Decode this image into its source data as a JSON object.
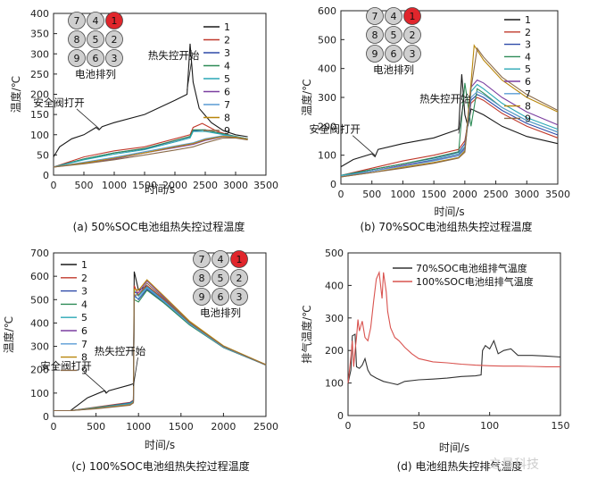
{
  "legend_labels": [
    "1",
    "2",
    "3",
    "4",
    "5",
    "6",
    "7",
    "8",
    "9"
  ],
  "series_colors": [
    "#1a1a1a",
    "#c0392b",
    "#2e4aa8",
    "#2e8b57",
    "#2aa7b5",
    "#7b3fa0",
    "#5a9bd4",
    "#b8860b",
    "#8b6b4a"
  ],
  "battery_grid": {
    "cells": [
      "7",
      "4",
      "1",
      "8",
      "5",
      "2",
      "9",
      "6",
      "3"
    ],
    "hot_cell": "1",
    "hot_color": "#e0262c",
    "cell_color": "#cfcfcf",
    "label": "电池排列"
  },
  "watermark": "之量科技",
  "chart_data": [
    {
      "type": "line",
      "caption": "(a) 50%SOC电池组热失控过程温度",
      "xlabel": "时间/s",
      "ylabel": "温度/℃",
      "xlim": [
        0,
        3500
      ],
      "ylim": [
        0,
        400
      ],
      "xticks": [
        0,
        500,
        1000,
        1500,
        2000,
        2500,
        3000,
        3500
      ],
      "yticks": [
        0,
        50,
        100,
        150,
        200,
        250,
        300,
        350,
        400
      ],
      "annotations": [
        {
          "text": "安全阀打开",
          "at": [
            750,
            115
          ]
        },
        {
          "text": "热失控开始",
          "at": [
            2200,
            210
          ]
        }
      ],
      "series": [
        {
          "name": "1",
          "x": [
            0,
            100,
            300,
            500,
            700,
            750,
            800,
            1000,
            1500,
            2000,
            2200,
            2250,
            2300,
            2400,
            2600,
            2800,
            3000,
            3200
          ],
          "y": [
            45,
            70,
            90,
            100,
            118,
            112,
            120,
            130,
            150,
            185,
            200,
            325,
            230,
            165,
            130,
            110,
            100,
            95
          ]
        },
        {
          "name": "2",
          "x": [
            0,
            500,
            1000,
            1500,
            2000,
            2250,
            2300,
            2450,
            2700,
            3000,
            3200
          ],
          "y": [
            20,
            45,
            60,
            70,
            90,
            100,
            118,
            128,
            108,
            95,
            90
          ]
        },
        {
          "name": "3",
          "x": [
            0,
            500,
            1000,
            1500,
            2000,
            2250,
            2300,
            2500,
            2700,
            3000,
            3200
          ],
          "y": [
            20,
            40,
            55,
            65,
            85,
            95,
            110,
            112,
            105,
            95,
            90
          ]
        },
        {
          "name": "4",
          "x": [
            0,
            500,
            1000,
            1500,
            2000,
            2250,
            2300,
            2500,
            2700,
            3000,
            3200
          ],
          "y": [
            20,
            40,
            55,
            66,
            86,
            96,
            112,
            112,
            105,
            96,
            90
          ]
        },
        {
          "name": "5",
          "x": [
            0,
            500,
            1000,
            1500,
            2000,
            2250,
            2300,
            2500,
            2700,
            3000,
            3200
          ],
          "y": [
            20,
            38,
            52,
            63,
            82,
            92,
            108,
            108,
            103,
            95,
            90
          ]
        },
        {
          "name": "6",
          "x": [
            0,
            500,
            1000,
            1500,
            2000,
            2300,
            2500,
            2800,
            3000,
            3200
          ],
          "y": [
            20,
            30,
            40,
            55,
            68,
            76,
            86,
            95,
            93,
            88
          ]
        },
        {
          "name": "7",
          "x": [
            0,
            500,
            1000,
            1500,
            2000,
            2300,
            2500,
            2800,
            3000,
            3200
          ],
          "y": [
            20,
            32,
            44,
            58,
            72,
            80,
            90,
            98,
            95,
            90
          ]
        },
        {
          "name": "8",
          "x": [
            0,
            500,
            1000,
            1500,
            2000,
            2300,
            2500,
            2800,
            3000,
            3200
          ],
          "y": [
            20,
            30,
            42,
            55,
            70,
            78,
            88,
            96,
            94,
            89
          ]
        },
        {
          "name": "9",
          "x": [
            0,
            500,
            1000,
            1500,
            2000,
            2300,
            2500,
            2800,
            3000,
            3200
          ],
          "y": [
            20,
            28,
            38,
            50,
            62,
            70,
            80,
            92,
            92,
            87
          ]
        }
      ]
    },
    {
      "type": "line",
      "caption": "(b) 70%SOC电池组热失控过程温度",
      "xlabel": "时间/s",
      "ylabel": "温度/℃",
      "xlim": [
        0,
        3500
      ],
      "ylim": [
        0,
        600
      ],
      "xticks": [
        0,
        500,
        1000,
        1500,
        2000,
        2500,
        3000,
        3500
      ],
      "yticks": [
        0,
        100,
        200,
        300,
        400,
        500,
        600
      ],
      "annotations": [
        {
          "text": "安全阀打开",
          "at": [
            550,
            100
          ]
        },
        {
          "text": "热失控开始",
          "at": [
            1900,
            175
          ]
        }
      ],
      "series": [
        {
          "name": "1",
          "x": [
            0,
            200,
            500,
            550,
            600,
            1000,
            1500,
            1900,
            1950,
            2000,
            2050,
            2100,
            2300,
            2600,
            3000,
            3500
          ],
          "y": [
            60,
            85,
            105,
            95,
            120,
            140,
            160,
            190,
            380,
            240,
            200,
            260,
            240,
            200,
            165,
            140
          ]
        },
        {
          "name": "2",
          "x": [
            0,
            500,
            1000,
            1500,
            1900,
            2000,
            2100,
            2200,
            2300,
            2600,
            3000,
            3500
          ],
          "y": [
            30,
            55,
            80,
            100,
            120,
            150,
            280,
            300,
            290,
            245,
            200,
            160
          ]
        },
        {
          "name": "3",
          "x": [
            0,
            500,
            1000,
            1500,
            1900,
            2000,
            2100,
            2200,
            2300,
            2600,
            3000,
            3500
          ],
          "y": [
            30,
            50,
            70,
            90,
            110,
            140,
            290,
            310,
            300,
            255,
            210,
            170
          ]
        },
        {
          "name": "4",
          "x": [
            0,
            500,
            1000,
            1500,
            1900,
            2000,
            2100,
            2200,
            2300,
            2600,
            3000,
            3500
          ],
          "y": [
            30,
            50,
            70,
            92,
            112,
            350,
            200,
            330,
            315,
            265,
            220,
            180
          ]
        },
        {
          "name": "5",
          "x": [
            0,
            500,
            1000,
            1500,
            1900,
            2000,
            2100,
            2200,
            2300,
            2600,
            3000,
            3500
          ],
          "y": [
            30,
            45,
            65,
            85,
            105,
            130,
            320,
            345,
            330,
            280,
            230,
            190
          ]
        },
        {
          "name": "6",
          "x": [
            0,
            500,
            1000,
            1500,
            1900,
            2000,
            2100,
            2200,
            2300,
            2600,
            3000,
            3500
          ],
          "y": [
            25,
            45,
            65,
            82,
            100,
            125,
            335,
            360,
            350,
            300,
            250,
            205
          ]
        },
        {
          "name": "7",
          "x": [
            0,
            500,
            1000,
            1500,
            1900,
            2000,
            2100,
            2200,
            2300,
            2600,
            3000,
            3500
          ],
          "y": [
            25,
            45,
            62,
            80,
            98,
            120,
            300,
            320,
            310,
            265,
            220,
            180
          ]
        },
        {
          "name": "8",
          "x": [
            0,
            500,
            1000,
            1500,
            1900,
            2000,
            2100,
            2150,
            2300,
            2600,
            3000,
            3500
          ],
          "y": [
            25,
            40,
            58,
            75,
            92,
            115,
            350,
            480,
            430,
            360,
            300,
            250
          ]
        },
        {
          "name": "9",
          "x": [
            0,
            500,
            1000,
            1500,
            1900,
            2000,
            2100,
            2200,
            2300,
            2600,
            3000,
            3500
          ],
          "y": [
            25,
            40,
            55,
            72,
            90,
            110,
            330,
            470,
            440,
            370,
            310,
            255
          ]
        }
      ]
    },
    {
      "type": "line",
      "caption": "(c) 100%SOC电池组热失控过程温度",
      "xlabel": "时间/s",
      "ylabel": "温度/℃",
      "xlim": [
        0,
        2500
      ],
      "ylim": [
        0,
        700
      ],
      "xticks": [
        0,
        500,
        1000,
        1500,
        2000,
        2500
      ],
      "yticks": [
        0,
        100,
        200,
        300,
        400,
        500,
        600,
        700
      ],
      "annotations": [
        {
          "text": "安全阀打开",
          "at": [
            620,
            105
          ]
        },
        {
          "text": "热失控开始",
          "at": [
            940,
            130
          ]
        }
      ],
      "series": [
        {
          "name": "1",
          "x": [
            0,
            200,
            400,
            600,
            620,
            650,
            900,
            940,
            950,
            1000,
            1100,
            1300,
            1600,
            2000,
            2500
          ],
          "y": [
            25,
            25,
            80,
            110,
            100,
            110,
            135,
            140,
            620,
            540,
            560,
            500,
            400,
            300,
            220
          ]
        },
        {
          "name": "2",
          "x": [
            0,
            200,
            500,
            900,
            940,
            950,
            1000,
            1100,
            1300,
            1600,
            2000,
            2500
          ],
          "y": [
            25,
            25,
            40,
            60,
            70,
            560,
            520,
            560,
            500,
            400,
            300,
            220
          ]
        },
        {
          "name": "3",
          "x": [
            0,
            200,
            500,
            900,
            940,
            950,
            1000,
            1100,
            1300,
            1600,
            2000,
            2500
          ],
          "y": [
            25,
            25,
            38,
            58,
            68,
            520,
            500,
            545,
            490,
            395,
            295,
            220
          ]
        },
        {
          "name": "4",
          "x": [
            0,
            200,
            500,
            900,
            940,
            950,
            1000,
            1100,
            1300,
            1600,
            2000,
            2500
          ],
          "y": [
            25,
            25,
            38,
            56,
            66,
            500,
            490,
            540,
            485,
            392,
            295,
            220
          ]
        },
        {
          "name": "5",
          "x": [
            0,
            200,
            500,
            900,
            940,
            950,
            1000,
            1100,
            1300,
            1600,
            2000,
            2500
          ],
          "y": [
            25,
            25,
            36,
            55,
            65,
            540,
            515,
            555,
            495,
            398,
            298,
            220
          ]
        },
        {
          "name": "6",
          "x": [
            0,
            200,
            500,
            900,
            940,
            950,
            1000,
            1100,
            1300,
            1600,
            2000,
            2500
          ],
          "y": [
            25,
            25,
            35,
            52,
            62,
            530,
            530,
            580,
            510,
            405,
            300,
            222
          ]
        },
        {
          "name": "7",
          "x": [
            0,
            200,
            500,
            900,
            940,
            950,
            1000,
            1100,
            1300,
            1600,
            2000,
            2500
          ],
          "y": [
            25,
            25,
            35,
            52,
            62,
            510,
            505,
            550,
            492,
            396,
            297,
            220
          ]
        },
        {
          "name": "8",
          "x": [
            0,
            200,
            500,
            900,
            940,
            950,
            1000,
            1100,
            1300,
            1600,
            2000,
            2500
          ],
          "y": [
            25,
            25,
            34,
            50,
            60,
            545,
            540,
            585,
            515,
            408,
            302,
            222
          ]
        },
        {
          "name": "9",
          "x": [
            0,
            200,
            500,
            900,
            940,
            950,
            1000,
            1100,
            1300,
            1600,
            2000,
            2500
          ],
          "y": [
            25,
            25,
            33,
            48,
            58,
            520,
            520,
            570,
            505,
            402,
            300,
            220
          ]
        }
      ]
    },
    {
      "type": "line",
      "caption": "(d) 电池组热失控排气温度",
      "xlabel": "时间/s",
      "ylabel": "排气温度/℃",
      "xlim": [
        0,
        150
      ],
      "ylim": [
        0,
        500
      ],
      "xticks": [
        0,
        50,
        100,
        150
      ],
      "yticks": [
        0,
        100,
        200,
        300,
        400,
        500
      ],
      "series": [
        {
          "name": "70%SOC电池组排气温度",
          "color": "#333333",
          "x": [
            0,
            2,
            3,
            5,
            6,
            8,
            10,
            12,
            14,
            16,
            20,
            25,
            30,
            35,
            40,
            50,
            60,
            70,
            80,
            90,
            94,
            95,
            97,
            100,
            103,
            106,
            110,
            115,
            120,
            130,
            140,
            150
          ],
          "y": [
            100,
            140,
            245,
            250,
            150,
            145,
            155,
            175,
            140,
            125,
            115,
            105,
            100,
            95,
            105,
            110,
            112,
            115,
            120,
            122,
            125,
            200,
            215,
            205,
            230,
            190,
            200,
            205,
            185,
            185,
            183,
            180
          ]
        },
        {
          "name": "100%SOC电池组排气温度",
          "color": "#d9534f",
          "x": [
            0,
            2,
            3,
            4,
            5,
            6,
            7,
            8,
            10,
            12,
            14,
            16,
            18,
            20,
            22,
            24,
            25,
            27,
            28,
            30,
            33,
            36,
            40,
            45,
            50,
            60,
            70,
            80,
            90,
            100,
            110,
            120,
            130,
            140,
            150
          ],
          "y": [
            100,
            180,
            230,
            150,
            200,
            240,
            295,
            260,
            290,
            240,
            230,
            270,
            350,
            420,
            440,
            360,
            440,
            380,
            320,
            270,
            240,
            230,
            210,
            190,
            175,
            165,
            162,
            158,
            155,
            153,
            152,
            152,
            151,
            150,
            150
          ]
        }
      ]
    }
  ]
}
